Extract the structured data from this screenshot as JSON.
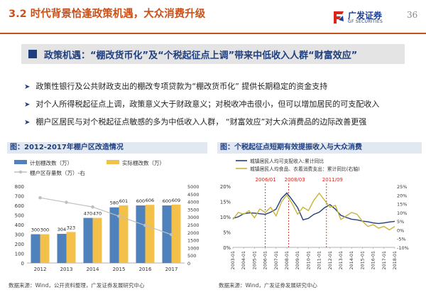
{
  "header": {
    "title": "3.2 时代背景恰逢政策机遇，大众消费升级",
    "brand_cn": "广发证券",
    "brand_en": "GF SECURITIES",
    "page_number": "36",
    "accent": "#c9521b",
    "brand_color": "#1c3f94"
  },
  "banner": {
    "text": "政策机遇：“棚改货币化”及“个税起征点上调”带来中低收入人群“财富效应”"
  },
  "bullets": [
    "政策性银行及公共财政支出的棚改专项贷款为“棚改货币化” 提供长期稳定的资金支持",
    "对个人所得税起征点上调，政策意义大于财政意义；对税收冲击很小，但可以增加居民的可支配收入",
    "棚户区居民与对个税起征点敏感的多为中低收入人群，  “财富效应”对大众消费品的边际改善更强"
  ],
  "chart_data": [
    {
      "type": "bar",
      "title": "图：2012-2017年棚户区改造情况",
      "categories": [
        "2012",
        "2013",
        "2014",
        "2015",
        "2016",
        "2017"
      ],
      "series": [
        {
          "name": "计划棚改数（万）",
          "values": [
            300,
            304,
            470,
            580,
            600,
            600
          ],
          "color": "#4f81bd"
        },
        {
          "name": "实际棚改数（万）",
          "values": [
            300,
            323,
            470,
            601,
            606,
            609
          ],
          "color": "#f3c04a"
        },
        {
          "name": "棚户区存量数（万）-右",
          "values": [
            4250,
            3950,
            3650,
            3050,
            2450,
            1850
          ],
          "color": "#bfbfbf",
          "axis": "right"
        }
      ],
      "ylim": [
        0,
        800
      ],
      "yticks": [
        "0",
        "100",
        "200",
        "300",
        "400",
        "500",
        "600",
        "700",
        "800"
      ],
      "ylim_right": [
        0,
        5000
      ],
      "yticks_right": [
        "0",
        "500",
        "1000",
        "1500",
        "2000",
        "2500",
        "3000",
        "3500",
        "4000",
        "4500",
        "5000"
      ],
      "source": "数据来源：Wind，公开资料整理，广发证券发展研究中心"
    },
    {
      "type": "line",
      "title": "图：个税起征点短期有效提振收入与大众消费",
      "series": [
        {
          "name": "城镇居民人均可支配收入:累计同比",
          "color": "#1f3e7e",
          "x": [
            "2003",
            "2003.5",
            "2004",
            "2004.5",
            "2005",
            "2005.5",
            "2006",
            "2006.5",
            "2007",
            "2007.5",
            "2008",
            "2008.5",
            "2009",
            "2009.5",
            "2010",
            "2010.5",
            "2011",
            "2011.5",
            "2012",
            "2012.5",
            "2013",
            "2013.5",
            "2014",
            "2014.5",
            "2015",
            "2015.5",
            "2016",
            "2016.5",
            "2017",
            "2017.5",
            "2018"
          ],
          "values": [
            9.5,
            10,
            11,
            11.3,
            11.2,
            11,
            10.8,
            11.5,
            12.5,
            16,
            17.8,
            15.5,
            13,
            9,
            9.5,
            10.8,
            11.5,
            13,
            14,
            12.5,
            10.5,
            9.8,
            9.2,
            9,
            8.6,
            8.4,
            8,
            7.8,
            8,
            8.3,
            8.5
          ]
        },
        {
          "name": "城镇居民人均食品、衣着消费支出：累计同比(右轴)",
          "color": "#c9b43a",
          "axis": "right",
          "x": [
            "2003",
            "2003.5",
            "2004",
            "2004.5",
            "2005",
            "2005.5",
            "2006",
            "2006.5",
            "2007",
            "2007.5",
            "2008",
            "2008.5",
            "2009",
            "2009.5",
            "2010",
            "2010.5",
            "2011",
            "2011.5",
            "2012",
            "2012.5",
            "2013",
            "2013.5",
            "2014",
            "2014.5",
            "2015",
            "2015.5",
            "2016",
            "2016.5",
            "2017",
            "2017.5",
            "2018"
          ],
          "values": [
            6,
            10,
            9,
            11,
            7,
            12,
            10,
            13,
            8,
            16,
            20,
            15,
            9,
            13,
            11,
            17,
            21,
            17,
            13,
            14,
            6,
            8,
            10,
            9,
            5,
            2,
            3,
            1,
            2,
            0,
            2
          ]
        }
      ],
      "annotations": [
        "2006/01",
        "2008/03",
        "2011/09"
      ],
      "xticks": [
        "2003-01",
        "2004-01",
        "2005-01",
        "2006-01",
        "2007-01",
        "2008-01",
        "2009-01",
        "2010-01",
        "2011-01",
        "2012-01",
        "2013-01",
        "2014-01",
        "2015-01",
        "2016-01",
        "2017-01",
        "2018-01"
      ],
      "ylim": [
        0,
        20
      ],
      "yticks": [
        "0%",
        "5%",
        "10%",
        "15%",
        "20%"
      ],
      "ylim_right": [
        -10,
        25
      ],
      "yticks_right": [
        "-10%",
        "-5%",
        "0%",
        "5%",
        "10%",
        "15%",
        "20%",
        "25%"
      ],
      "source": "数据来源：Wind，广发证券发展研究中心"
    }
  ]
}
